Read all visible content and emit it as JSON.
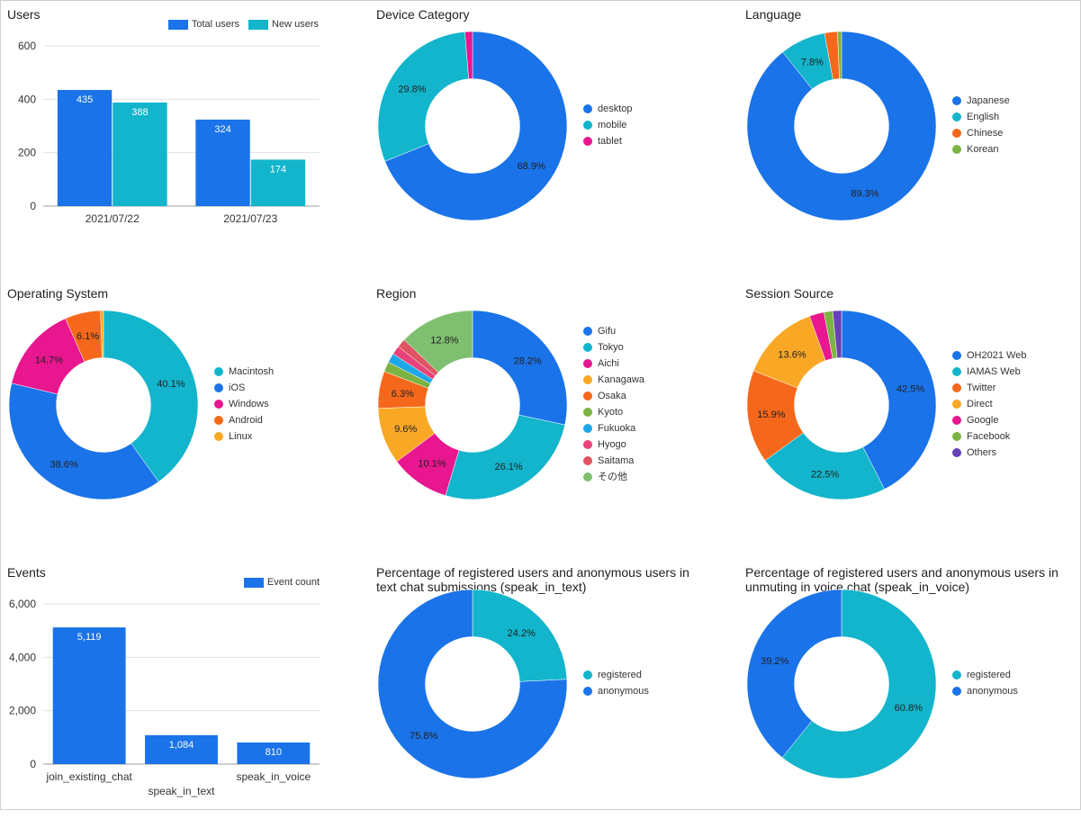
{
  "chart_data": [
    {
      "id": "users",
      "type": "bar",
      "title": "Users",
      "categories": [
        "2021/07/22",
        "2021/07/23"
      ],
      "series": [
        {
          "name": "Total users",
          "values": [
            435,
            324
          ],
          "color": "#1a73e8"
        },
        {
          "name": "New users",
          "values": [
            388,
            174
          ],
          "color": "#12b5cb"
        }
      ],
      "ylim": [
        0,
        600
      ],
      "yticks": [
        0,
        200,
        400,
        600
      ],
      "ytick_labels": [
        "0",
        "200",
        "400",
        "600"
      ],
      "grid": true,
      "legend": "top-right"
    },
    {
      "id": "device",
      "type": "pie",
      "title": "Device Category",
      "labels": [
        "desktop",
        "mobile",
        "tablet"
      ],
      "values": [
        68.9,
        29.8,
        1.3
      ],
      "value_labels": [
        "68.9%",
        "29.8%",
        ""
      ],
      "colors": [
        "#1a73e8",
        "#12b5cb",
        "#e8168f"
      ],
      "legend": "right"
    },
    {
      "id": "language",
      "type": "pie",
      "title": "Language",
      "labels": [
        "Japanese",
        "English",
        "Chinese",
        "Korean"
      ],
      "values": [
        89.3,
        7.8,
        2.2,
        0.7
      ],
      "value_labels": [
        "89.3%",
        "7.8%",
        "",
        ""
      ],
      "colors": [
        "#1a73e8",
        "#12b5cb",
        "#f5681b",
        "#7cb342"
      ],
      "legend": "right"
    },
    {
      "id": "os",
      "type": "pie",
      "title": "Operating System",
      "labels": [
        "Macintosh",
        "iOS",
        "Windows",
        "Android",
        "Linux"
      ],
      "values": [
        40.1,
        38.6,
        14.7,
        6.1,
        0.5
      ],
      "value_labels": [
        "40.1%",
        "38.6%",
        "14.7%",
        "6.1%",
        ""
      ],
      "colors": [
        "#12b5cb",
        "#1a73e8",
        "#e8168f",
        "#f5681b",
        "#f9a825"
      ],
      "legend": "right"
    },
    {
      "id": "region",
      "type": "pie",
      "title": "Region",
      "labels": [
        "Gifu",
        "Tokyo",
        "Aichi",
        "Kanagawa",
        "Osaka",
        "Kyoto",
        "Fukuoka",
        "Hyogo",
        "Saitama",
        "その他"
      ],
      "values": [
        28.2,
        26.1,
        10.1,
        9.6,
        6.3,
        1.7,
        1.6,
        1.5,
        1.5,
        12.8
      ],
      "value_labels": [
        "28.2%",
        "26.1%",
        "10.1%",
        "9.6%",
        "6.3%",
        "",
        "",
        "",
        "",
        "12.8%"
      ],
      "colors": [
        "#1a73e8",
        "#12b5cb",
        "#e8168f",
        "#f9a825",
        "#f5681b",
        "#7cb342",
        "#1ea7e8",
        "#e8427a",
        "#e05563",
        "#7fc070"
      ],
      "legend": "right"
    },
    {
      "id": "source",
      "type": "pie",
      "title": "Session Source",
      "labels": [
        "OH2021 Web",
        "IAMAS Web",
        "Twitter",
        "Direct",
        "Google",
        "Facebook",
        "Others"
      ],
      "values": [
        42.5,
        22.5,
        15.9,
        13.6,
        2.5,
        1.5,
        1.5
      ],
      "value_labels": [
        "42.5%",
        "22.5%",
        "15.9%",
        "13.6%",
        "",
        "",
        ""
      ],
      "colors": [
        "#1a73e8",
        "#12b5cb",
        "#f5681b",
        "#f9a825",
        "#e8168f",
        "#7cb342",
        "#6741b8"
      ],
      "legend": "right"
    },
    {
      "id": "events",
      "type": "bar",
      "title": "Events",
      "categories": [
        "join_existing_chat",
        "speak_in_text",
        "speak_in_voice"
      ],
      "series": [
        {
          "name": "Event count",
          "values": [
            5119,
            1084,
            810
          ],
          "color": "#1a73e8"
        }
      ],
      "value_labels": [
        "5,119",
        "1,084",
        "810"
      ],
      "ylim": [
        0,
        6000
      ],
      "yticks": [
        0,
        2000,
        4000,
        6000
      ],
      "ytick_labels": [
        "0",
        "2,000",
        "4,000",
        "6,000"
      ],
      "grid": true,
      "legend": "top-right"
    },
    {
      "id": "text_chat",
      "type": "pie",
      "title": "Percentage of registered users and anonymous users in text chat submissions (speak_in_text)",
      "labels": [
        "registered",
        "anonymous"
      ],
      "values": [
        24.2,
        75.8
      ],
      "value_labels": [
        "24.2%",
        "75.8%"
      ],
      "colors": [
        "#12b5cb",
        "#1a73e8"
      ],
      "legend": "right"
    },
    {
      "id": "voice_chat",
      "type": "pie",
      "title": "Percentage of registered users and anonymous users in unmuting in voice chat (speak_in_voice)",
      "labels": [
        "registered",
        "anonymous"
      ],
      "values": [
        60.8,
        39.2
      ],
      "value_labels": [
        "60.8%",
        "39.2%"
      ],
      "colors": [
        "#12b5cb",
        "#1a73e8"
      ],
      "legend": "right"
    }
  ]
}
